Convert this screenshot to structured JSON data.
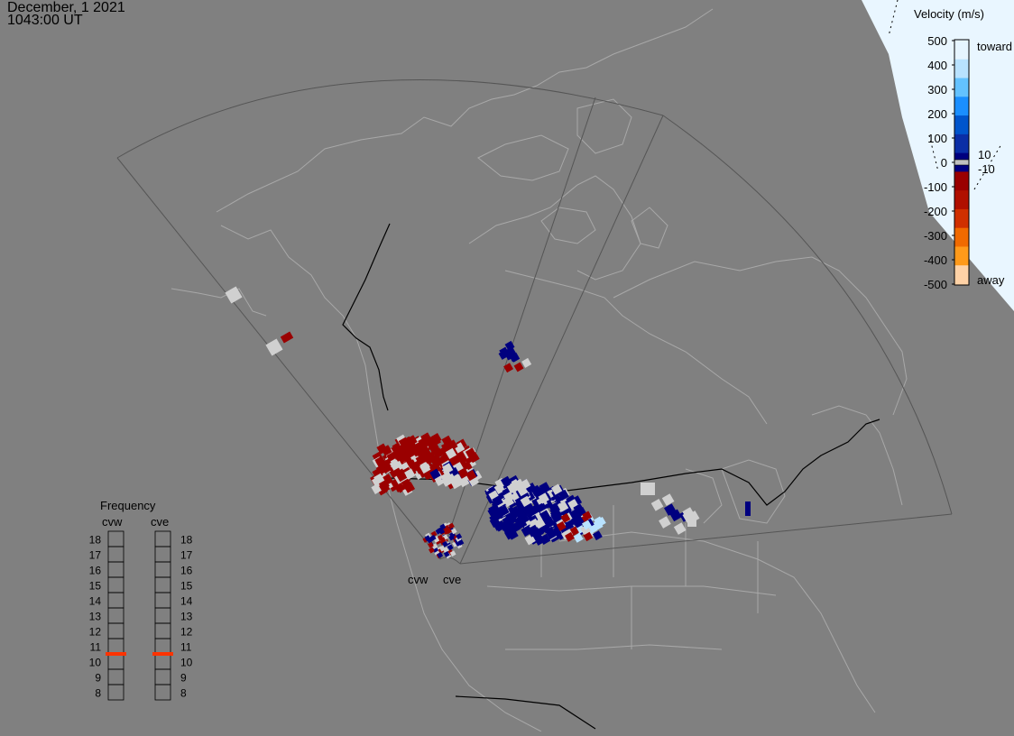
{
  "header": {
    "date": "December, 1 2021",
    "time": "1043:00 UT"
  },
  "legend": {
    "title": "Velocity (m/s)",
    "top_label": "toward",
    "bottom_label": "away",
    "zero_band_labels": [
      "10",
      "-10"
    ],
    "ticks": [
      "500",
      "400",
      "300",
      "200",
      "100",
      "0",
      "-100",
      "-200",
      "-300",
      "-400",
      "-500"
    ],
    "colors": [
      "#e6f5ff",
      "#b8e2ff",
      "#63c2ff",
      "#1a8fff",
      "#0055cc",
      "#0a2ea6",
      "#00007f",
      "#9a0000",
      "#b01000",
      "#d03000",
      "#f06a00",
      "#ff9a1a",
      "#ffd2a6"
    ],
    "zero_color": "#c0c0c0"
  },
  "frequency": {
    "title": "Frequency",
    "radars": [
      "cvw",
      "cve"
    ],
    "levels": [
      "18",
      "17",
      "16",
      "15",
      "14",
      "13",
      "12",
      "11",
      "10",
      "9",
      "8"
    ],
    "values": [
      10.5,
      10.5
    ],
    "marker_color": "#ff3300"
  },
  "map": {
    "radar_labels": [
      "cvw",
      "cve"
    ],
    "colors": {
      "background": "#808080",
      "coastline": "#a8a8a8",
      "border": "#000000",
      "fov": "#555555",
      "night": "#e9f6ff",
      "toward": "#00007f",
      "away": "#9a0000",
      "ground": "#d0d0d0",
      "light_blue": "#b8e2ff"
    }
  }
}
